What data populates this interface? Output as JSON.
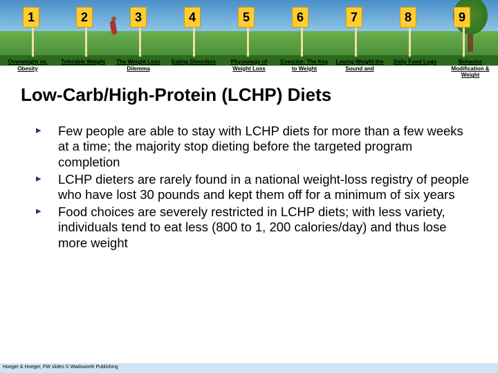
{
  "banner": {
    "signs": [
      "1",
      "2",
      "3",
      "4",
      "5",
      "6",
      "7",
      "8",
      "9"
    ],
    "sign_bg": "#ffcc33",
    "sign_border": "#cc9900",
    "sky_top": "#4a8fc8",
    "sky_bottom": "#8cc5e8",
    "grass_top": "#6ab04c",
    "grass_bottom": "#4a8f3a",
    "nav": [
      "Overweight vs. Obesity",
      "Tolerable Weight",
      "The Weight Loss Dilemma",
      "Eating Disorders",
      "Physiology of Weight Loss",
      "Exercise: The Key to Weight",
      "Losing Weight the Sound and",
      "Daily Food Logs",
      "Behavior Modification & Weight"
    ]
  },
  "title": "Low-Carb/High-Protein (LCHP) Diets",
  "bullets": [
    "Few people are able to stay with LCHP diets for more than a few weeks at a time; the majority stop dieting before the targeted program completion",
    "LCHP dieters are rarely found in a national weight-loss registry of people who have lost 30 pounds and kept them off for a minimum of six years",
    "Food choices are severely restricted in LCHP diets; with less variety, individuals tend to eat less (800 to 1, 200 calories/day) and thus lose more weight"
  ],
  "footer": "Hoeger & Hoeger, FW slides © Wadsworth Publishing",
  "colors": {
    "bullet_marker": "#1a3a6a",
    "footer_bg": "#cde5f5",
    "text": "#000000"
  }
}
